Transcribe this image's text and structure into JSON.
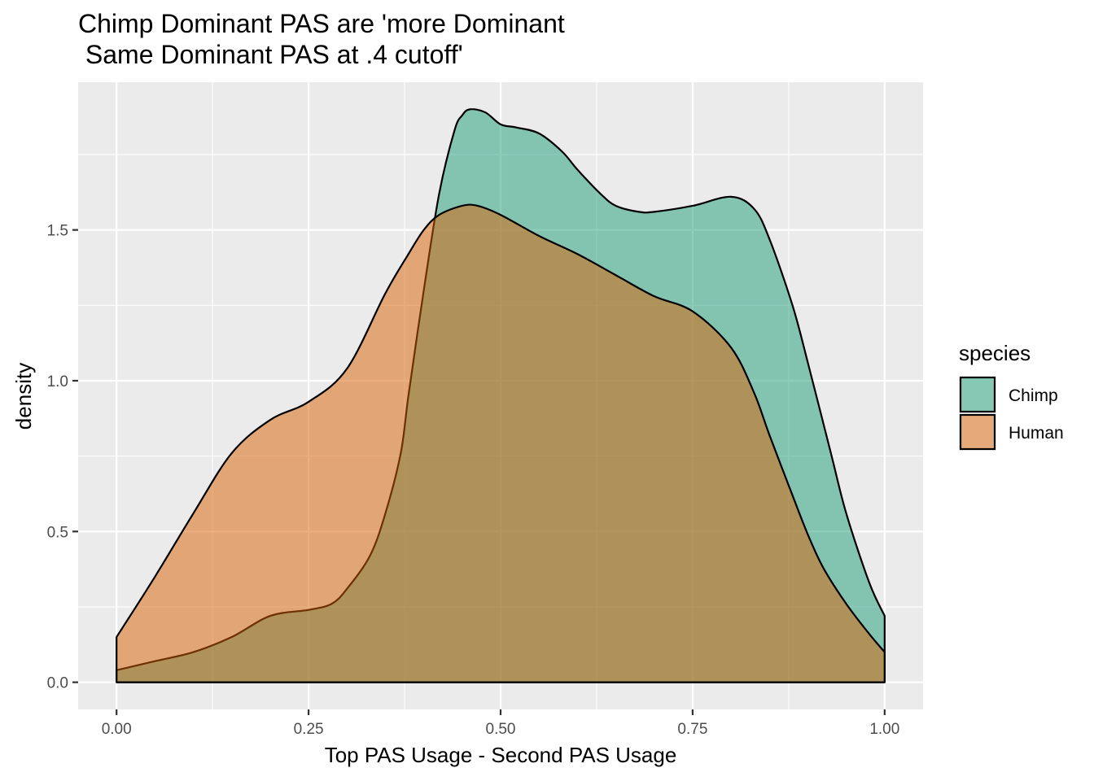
{
  "chart_data": {
    "type": "area",
    "title_lines": [
      "Chimp Dominant PAS are 'more Dominant",
      " Same Dominant PAS at .4 cutoff'"
    ],
    "xlabel": "Top PAS Usage - Second PAS Usage",
    "ylabel": "density",
    "xlim": [
      -0.05,
      1.05
    ],
    "ylim": [
      -0.09,
      1.99
    ],
    "x_ticks": [
      0.0,
      0.25,
      0.5,
      0.75,
      1.0
    ],
    "x_tick_labels": [
      "0.00",
      "0.25",
      "0.50",
      "0.75",
      "1.00"
    ],
    "y_ticks": [
      0.0,
      0.5,
      1.0,
      1.5
    ],
    "y_tick_labels": [
      "0.0",
      "0.5",
      "1.0",
      "1.5"
    ],
    "grid": true,
    "legend_title": "species",
    "legend_position": "right",
    "series": [
      {
        "name": "Chimp",
        "color": "#1b9e77",
        "x": [
          0.0,
          0.05,
          0.1,
          0.15,
          0.2,
          0.25,
          0.28,
          0.3,
          0.33,
          0.35,
          0.37,
          0.38,
          0.4,
          0.42,
          0.44,
          0.45,
          0.46,
          0.48,
          0.5,
          0.52,
          0.55,
          0.58,
          0.6,
          0.63,
          0.65,
          0.68,
          0.7,
          0.75,
          0.8,
          0.83,
          0.85,
          0.88,
          0.9,
          0.93,
          0.95,
          0.98,
          1.0
        ],
        "values": [
          0.04,
          0.07,
          0.1,
          0.15,
          0.22,
          0.24,
          0.26,
          0.31,
          0.42,
          0.56,
          0.76,
          0.95,
          1.3,
          1.62,
          1.83,
          1.88,
          1.9,
          1.89,
          1.85,
          1.84,
          1.82,
          1.76,
          1.7,
          1.62,
          1.58,
          1.56,
          1.56,
          1.58,
          1.61,
          1.57,
          1.47,
          1.25,
          1.06,
          0.76,
          0.56,
          0.33,
          0.22
        ]
      },
      {
        "name": "Human",
        "color": "#d95f02",
        "x": [
          0.0,
          0.05,
          0.1,
          0.15,
          0.2,
          0.25,
          0.3,
          0.35,
          0.38,
          0.4,
          0.42,
          0.45,
          0.47,
          0.5,
          0.55,
          0.6,
          0.65,
          0.7,
          0.75,
          0.8,
          0.83,
          0.85,
          0.88,
          0.9,
          0.92,
          0.95,
          0.98,
          1.0
        ],
        "values": [
          0.15,
          0.35,
          0.56,
          0.76,
          0.87,
          0.93,
          1.04,
          1.29,
          1.42,
          1.5,
          1.55,
          1.58,
          1.58,
          1.55,
          1.48,
          1.42,
          1.35,
          1.28,
          1.23,
          1.11,
          0.96,
          0.82,
          0.62,
          0.49,
          0.38,
          0.26,
          0.16,
          0.1
        ]
      }
    ]
  }
}
